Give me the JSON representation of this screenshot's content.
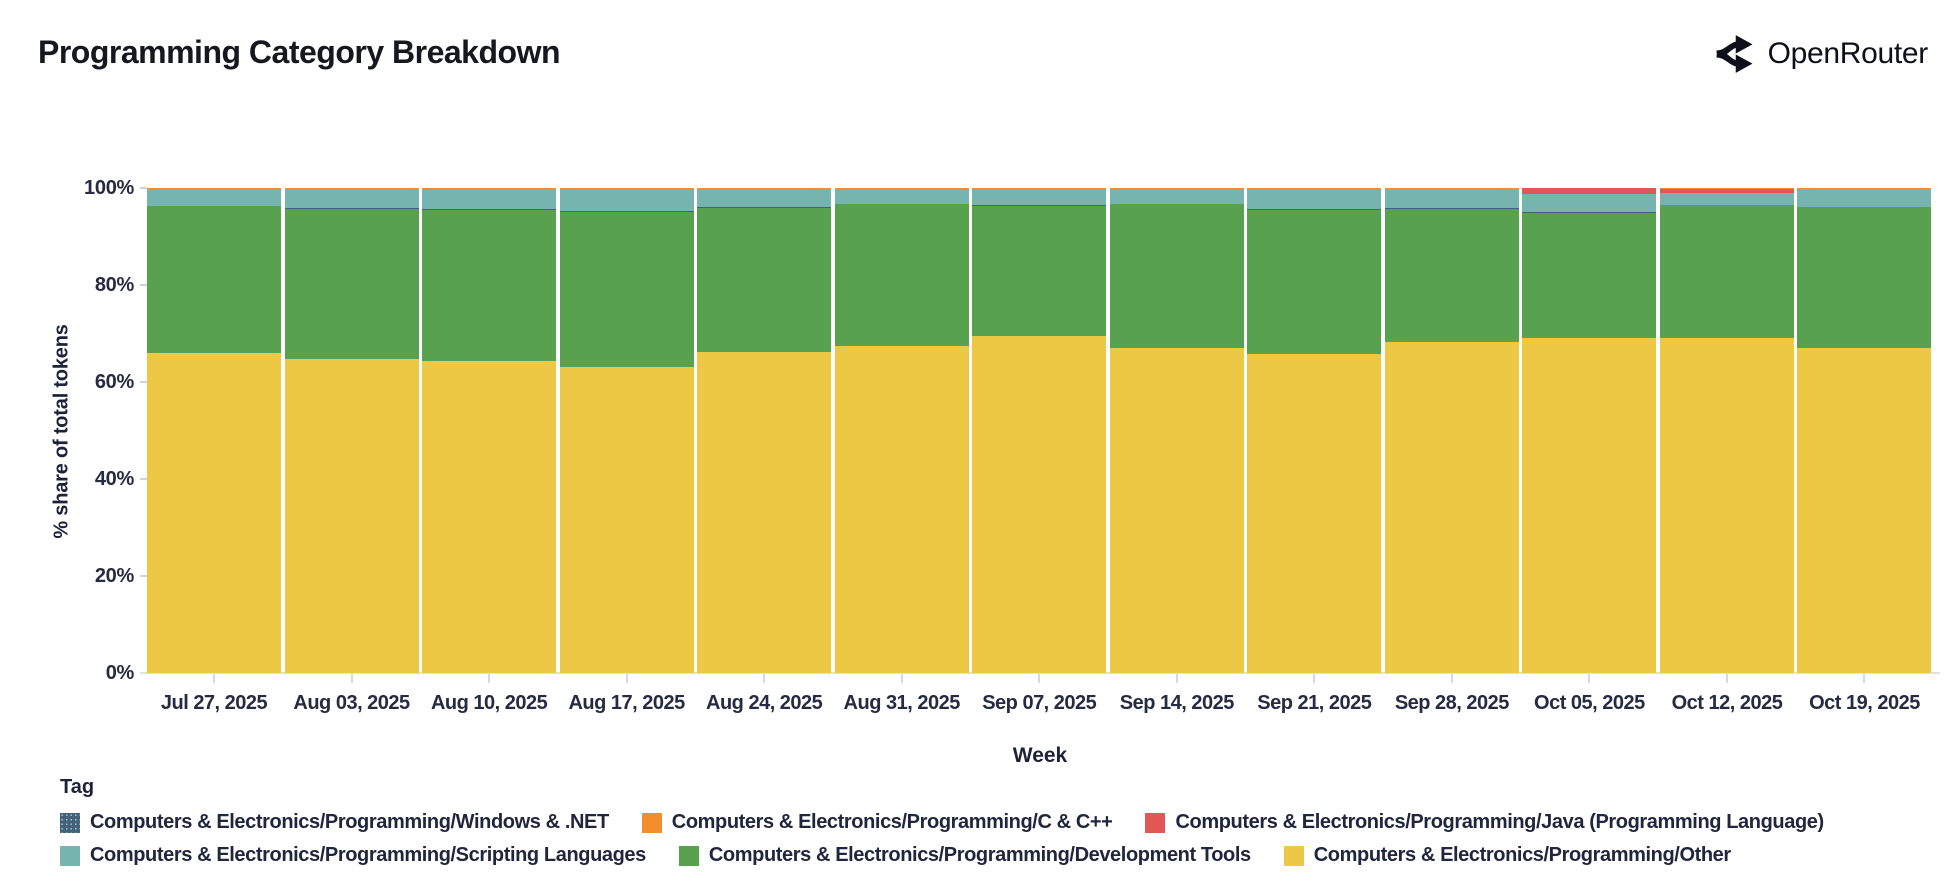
{
  "header": {
    "title": "Programming Category Breakdown",
    "brand": "OpenRouter"
  },
  "chart_data": {
    "type": "bar",
    "stacked": true,
    "normalized_percent": true,
    "title": "Programming Category Breakdown",
    "xlabel": "Week",
    "ylabel": "% share of total tokens",
    "ylim": [
      0,
      100
    ],
    "ytick_percents": [
      0,
      20,
      40,
      60,
      80,
      100
    ],
    "ytick_labels": [
      "0%",
      "20%",
      "40%",
      "60%",
      "80%",
      "100%"
    ],
    "legend_title": "Tag",
    "legend_position": "bottom",
    "grid": false,
    "categories": [
      "Jul 27, 2025",
      "Aug 03, 2025",
      "Aug 10, 2025",
      "Aug 17, 2025",
      "Aug 24, 2025",
      "Aug 31, 2025",
      "Sep 07, 2025",
      "Sep 14, 2025",
      "Sep 21, 2025",
      "Sep 28, 2025",
      "Oct 05, 2025",
      "Oct 12, 2025",
      "Oct 19, 2025"
    ],
    "series": [
      {
        "name": "Computers & Electronics/Programming/Windows & .NET",
        "color": "#46607a",
        "swatch": "hatched",
        "values": [
          0.1,
          0.1,
          0.1,
          0.1,
          0.1,
          0.1,
          0.1,
          0.1,
          0.1,
          0.1,
          0.1,
          0.1,
          0.1
        ]
      },
      {
        "name": "Computers & Electronics/Programming/C & C++",
        "color": "#f28e2b",
        "swatch": "solid",
        "values": [
          0.4,
          0.4,
          0.4,
          0.4,
          0.4,
          0.4,
          0.4,
          0.4,
          0.4,
          0.4,
          0.1,
          0.2,
          0.4
        ]
      },
      {
        "name": "Computers & Electronics/Programming/Java (Programming Language)",
        "color": "#e05756",
        "swatch": "solid",
        "values": [
          0,
          0,
          0,
          0,
          0,
          0,
          0,
          0,
          0,
          0,
          1.2,
          0.8,
          0
        ]
      },
      {
        "name": "Computers & Electronics/Programming/Scripting Languages",
        "color": "#76b5af",
        "swatch": "solid",
        "values": [
          3.3,
          3.8,
          4.0,
          4.4,
          3.6,
          2.9,
          3.2,
          2.8,
          4.0,
          3.8,
          3.7,
          2.5,
          3.5
        ]
      },
      {
        "name": "Computers & Electronics/Programming/Development Tools",
        "color": "#58a14e",
        "swatch": "solid",
        "values": [
          30.2,
          30.9,
          31.2,
          32.0,
          29.8,
          29.1,
          26.9,
          29.6,
          29.8,
          27.5,
          25.8,
          27.4,
          29.0
        ]
      },
      {
        "name": "Computers & Electronics/Programming/Other",
        "color": "#ecc844",
        "swatch": "solid",
        "values": [
          66.0,
          64.8,
          64.3,
          63.1,
          66.1,
          67.5,
          69.4,
          67.1,
          65.7,
          68.2,
          69.1,
          69.0,
          67.0
        ]
      }
    ],
    "stack_order_bottom_up": [
      5,
      4,
      0,
      3,
      2,
      1
    ]
  }
}
